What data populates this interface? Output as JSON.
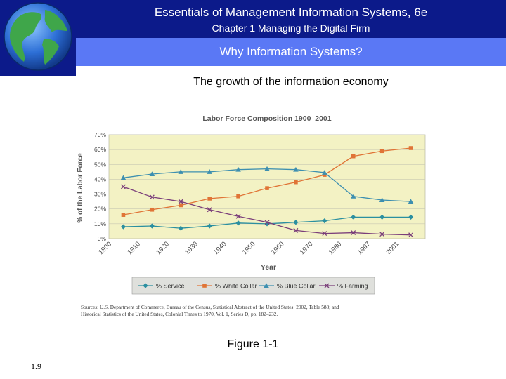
{
  "header": {
    "title": "Essentials of Management Information Systems, 6e",
    "subtitle": "Chapter 1 Managing the Digital Firm"
  },
  "band": {
    "title": "Why Information Systems?"
  },
  "slide": {
    "heading": "The growth of the information economy",
    "figure_label": "Figure 1-1",
    "page_number": "1.9"
  },
  "colors": {
    "header_bg": "#0c1a8a",
    "band_bg": "#5a78f5",
    "plot_bg": "#f3f2c4",
    "service": "#2b8fa0",
    "white_collar": "#e07436",
    "blue_collar": "#3d8fb0",
    "farming": "#7a3e7a"
  },
  "chart_data": {
    "type": "line",
    "title": "Labor Force Composition 1900–2001",
    "xlabel": "Year",
    "ylabel": "% of the Labor Force",
    "categories": [
      "1900",
      "1910",
      "1920",
      "1930",
      "1940",
      "1950",
      "1960",
      "1970",
      "1980",
      "1997",
      "2001"
    ],
    "yticks": [
      "0%",
      "10%",
      "20%",
      "30%",
      "40%",
      "50%",
      "60%",
      "70%"
    ],
    "ylim": [
      0,
      70
    ],
    "grid": true,
    "legend_position": "bottom",
    "series": [
      {
        "name": "% Service",
        "marker": "diamond",
        "values": [
          8,
          8.5,
          7,
          8.5,
          10.5,
          10,
          11,
          12,
          14.5,
          14.5,
          14.5
        ]
      },
      {
        "name": "% White Collar",
        "marker": "square",
        "values": [
          16,
          19.5,
          22.5,
          27,
          28.5,
          34,
          38,
          43,
          55.5,
          59,
          61
        ]
      },
      {
        "name": "% Blue Collar",
        "marker": "triangle",
        "values": [
          41,
          43.5,
          45,
          45,
          46.5,
          47,
          46.5,
          44.5,
          28.5,
          26,
          25
        ]
      },
      {
        "name": "% Farming",
        "marker": "x",
        "values": [
          35,
          28,
          25,
          19.5,
          15,
          11,
          5.5,
          3.5,
          4,
          3,
          2.5
        ]
      }
    ],
    "source_line1": "Sources: U.S. Department of Commerce, Bureau of the Census, Statistical Abstract of the United States: 2002, Table 588; and",
    "source_line2": "Historical Statistics of the United States, Colonial Times to 1970, Vol. 1, Series D, pp. 182–232."
  }
}
